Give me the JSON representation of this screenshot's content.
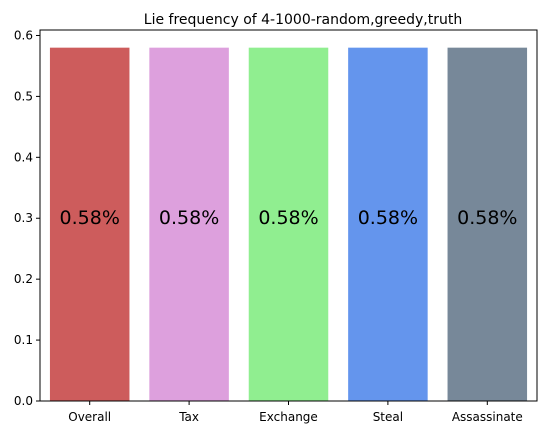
{
  "chart_data": {
    "type": "bar",
    "title": "Lie frequency of 4-1000-random,greedy,truth",
    "categories": [
      "Overall",
      "Tax",
      "Exchange",
      "Steal",
      "Assassinate"
    ],
    "values": [
      0.58,
      0.58,
      0.58,
      0.58,
      0.58
    ],
    "data_labels": [
      "0.58%",
      "0.58%",
      "0.58%",
      "0.58%",
      "0.58%"
    ],
    "colors": [
      "#cd5c5c",
      "#dda0dd",
      "#90ee90",
      "#6495ed",
      "#778899"
    ],
    "ylim": [
      0,
      0.609
    ],
    "yticks": [
      0.0,
      0.1,
      0.2,
      0.3,
      0.4,
      0.5,
      0.6
    ],
    "ytick_labels": [
      "0.0",
      "0.1",
      "0.2",
      "0.3",
      "0.4",
      "0.5",
      "0.6"
    ],
    "data_label_y": 0.3,
    "xlabel": "",
    "ylabel": "",
    "grid": false,
    "legend": "none"
  }
}
